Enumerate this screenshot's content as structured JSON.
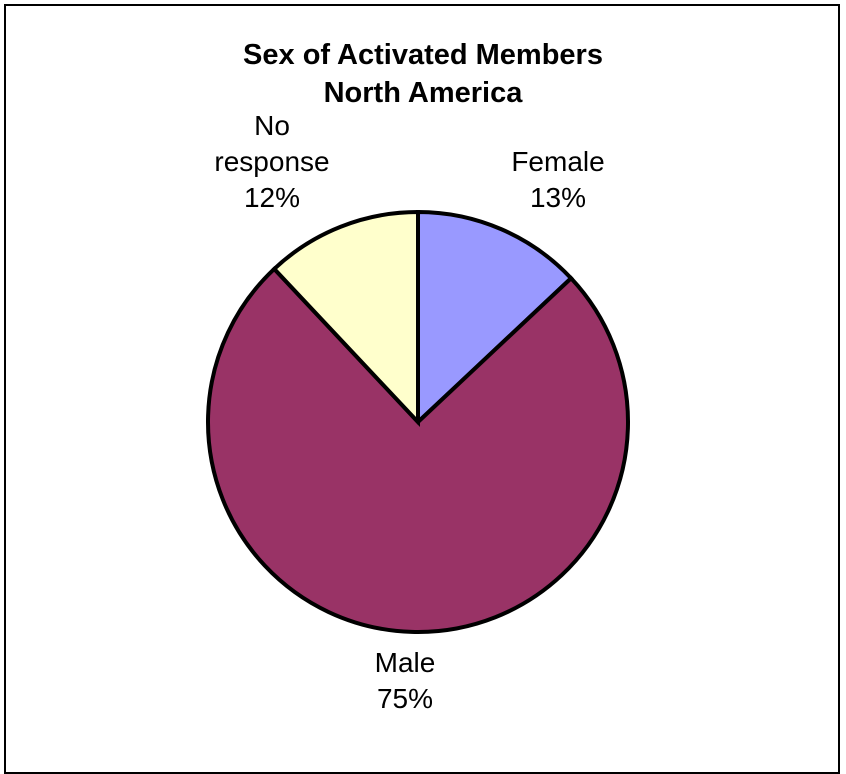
{
  "chart_data": {
    "type": "pie",
    "title": [
      "Sex of Activated Members",
      "North America"
    ],
    "slices": [
      {
        "name": "Female",
        "label_lines": [
          "Female"
        ],
        "value": 13,
        "pct_label": "13%",
        "color": "#9999FF"
      },
      {
        "name": "Male",
        "label_lines": [
          "Male"
        ],
        "value": 75,
        "pct_label": "75%",
        "color": "#993366"
      },
      {
        "name": "No response",
        "label_lines": [
          "No",
          "response"
        ],
        "value": 12,
        "pct_label": "12%",
        "color": "#FFFFCC"
      }
    ],
    "start_angle": "12 o'clock",
    "direction": "clockwise",
    "legend": "none"
  }
}
